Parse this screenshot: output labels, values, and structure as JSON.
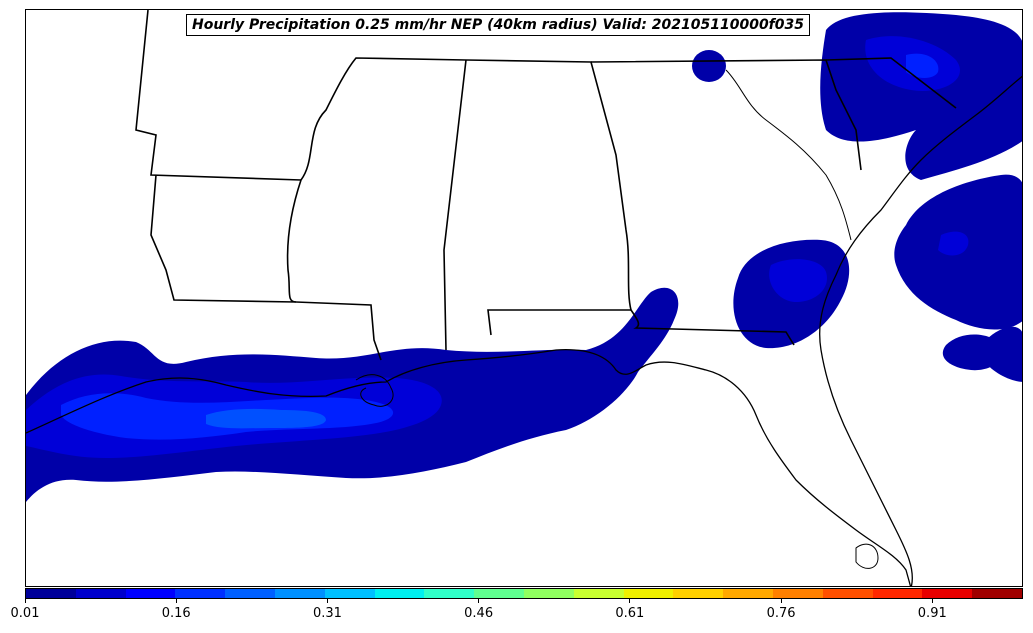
{
  "title": "Hourly Precipitation 0.25 mm/hr NEP (40km radius) Valid: 202105110000f035",
  "colorbar": {
    "min": 0.01,
    "max": 1.0,
    "ticks": [
      "0.01",
      "0.16",
      "0.31",
      "0.46",
      "0.61",
      "0.76",
      "0.91"
    ],
    "tick_values": [
      0.01,
      0.16,
      0.31,
      0.46,
      0.61,
      0.76,
      0.91
    ],
    "colors": [
      "#00009a",
      "#0000cc",
      "#0000ff",
      "#0030ff",
      "#0060ff",
      "#0090ff",
      "#00c0ff",
      "#00f0f0",
      "#30ffc8",
      "#60ff90",
      "#90ff60",
      "#c8ff30",
      "#f0f000",
      "#ffd000",
      "#ffa800",
      "#ff8000",
      "#ff5000",
      "#ff2800",
      "#e80000",
      "#a00000"
    ]
  },
  "palette": {
    "ocean_low": "#0000a8",
    "ocean_mid": "#0000d8",
    "ocean_high": "#0030ff",
    "ocean_peak": "#0060ff"
  }
}
